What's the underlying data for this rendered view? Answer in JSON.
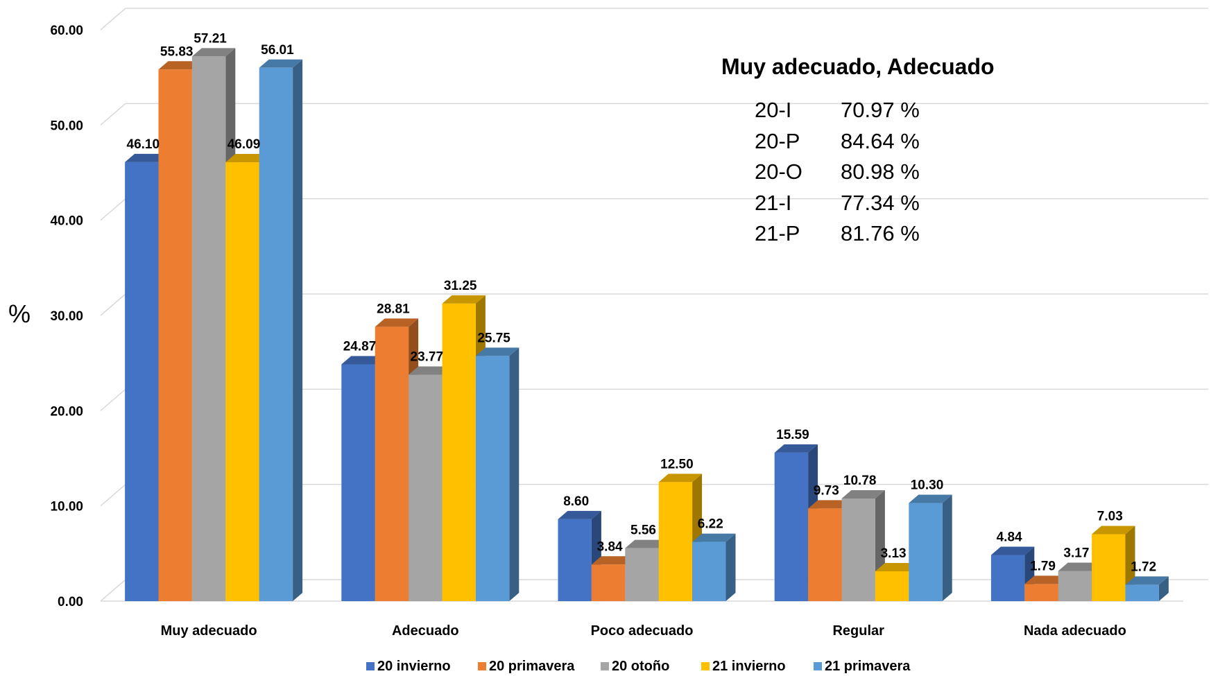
{
  "chart_data": {
    "type": "bar",
    "categories": [
      "Muy adecuado",
      "Adecuado",
      "Poco adecuado",
      "Regular",
      "Nada adecuado"
    ],
    "series": [
      {
        "name": "20 invierno",
        "color": "#4472C4",
        "values": [
          46.1,
          24.87,
          8.6,
          15.59,
          4.84
        ]
      },
      {
        "name": "20 primavera",
        "color": "#ED7D31",
        "values": [
          55.83,
          28.81,
          3.84,
          9.73,
          1.79
        ]
      },
      {
        "name": "20 otoño",
        "color": "#A5A5A5",
        "values": [
          57.21,
          23.77,
          5.56,
          10.78,
          3.17
        ]
      },
      {
        "name": "21 invierno",
        "color": "#FFC000",
        "values": [
          46.09,
          31.25,
          12.5,
          3.13,
          7.03
        ]
      },
      {
        "name": "21 primavera",
        "color": "#5B9BD5",
        "values": [
          56.01,
          25.75,
          6.22,
          10.3,
          1.72
        ]
      }
    ],
    "ylabel": "%",
    "ylim": [
      0,
      60
    ],
    "yticks": [
      "0.00",
      "10.00",
      "20.00",
      "30.00",
      "40.00",
      "50.00",
      "60.00"
    ],
    "grid": true,
    "legend_position": "bottom",
    "style": "3d-clustered-column"
  },
  "summary": {
    "title": "Muy adecuado,  Adecuado",
    "rows": [
      {
        "label": "20-I",
        "value": "70.97 %"
      },
      {
        "label": "20-P",
        "value": "84.64 %"
      },
      {
        "label": "20-O",
        "value": " 80.98 %"
      },
      {
        "label": "21-I",
        "value": " 77.34 %"
      },
      {
        "label": "21-P",
        "value": " 81.76 %"
      }
    ]
  }
}
